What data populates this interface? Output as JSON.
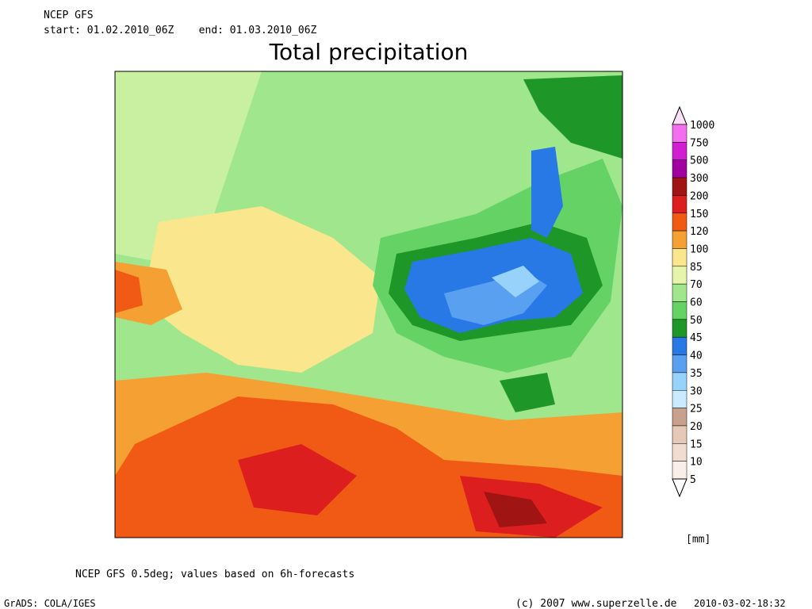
{
  "header": {
    "model": "NCEP GFS",
    "period": "start: 01.02.2010_06Z    end: 01.03.2010_06Z",
    "title": "Total precipitation"
  },
  "legend": {
    "levels": [
      "1000",
      "750",
      "500",
      "300",
      "200",
      "150",
      "120",
      "100",
      "85",
      "70",
      "60",
      "50",
      "45",
      "40",
      "35",
      "30",
      "25",
      "20",
      "15",
      "10",
      "5"
    ],
    "colors": [
      "#fde0f6",
      "#f46ef0",
      "#d21ed2",
      "#a000a0",
      "#a01414",
      "#dc1e1e",
      "#f05a14",
      "#f5a032",
      "#fae68c",
      "#e6f5aa",
      "#a0e68c",
      "#64d264",
      "#1e9628",
      "#2878e6",
      "#5aa0f0",
      "#96d2fa",
      "#c8ebff",
      "#c8a08c",
      "#e6c8b8",
      "#f2dcd2",
      "#faeee8",
      "#ffffff"
    ],
    "unit": "[mm]"
  },
  "footer": {
    "note": "NCEP GFS 0.5deg; values based on 6h-forecasts",
    "software": "GrADS: COLA/IGES",
    "copyright": "(c) 2007 www.superzelle.de",
    "timestamp": "2010-03-02-18:32"
  }
}
